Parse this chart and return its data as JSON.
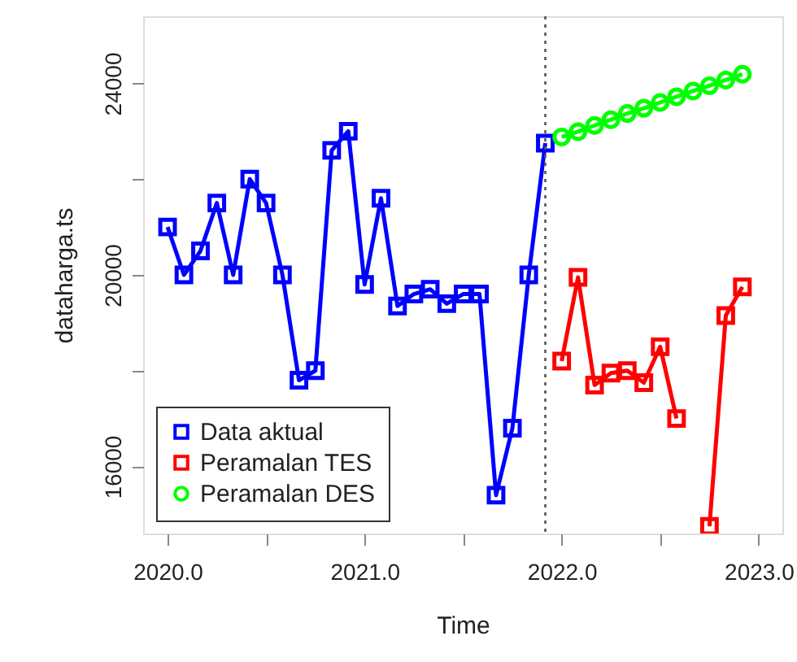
{
  "chart_data": {
    "type": "line",
    "xlabel": "Time",
    "ylabel": "dataharga.ts",
    "xlim": [
      2019.876,
      2023.12
    ],
    "ylim": [
      14600,
      25400
    ],
    "xticks": [
      {
        "value": 2020,
        "label": "2020.0"
      },
      {
        "value": 2020.5,
        "label": null
      },
      {
        "value": 2021,
        "label": "2021.0"
      },
      {
        "value": 2021.5,
        "label": null
      },
      {
        "value": 2022,
        "label": "2022.0"
      },
      {
        "value": 2022.5,
        "label": null
      },
      {
        "value": 2023,
        "label": "2023.0"
      }
    ],
    "yticks": [
      16000,
      {
        "value": 18000,
        "label": null
      },
      20000,
      {
        "value": 22000,
        "label": null
      },
      24000
    ],
    "grid": false,
    "legend": "bottom left",
    "ref_lines": [
      {
        "axis": "x",
        "value": 2021.917,
        "color": "#555555",
        "line_style": "dotted"
      }
    ],
    "series": [
      {
        "name": "Data aktual",
        "color": "#0000ff",
        "marker": "square",
        "x": [
          2020,
          2020.083,
          2020.167,
          2020.25,
          2020.333,
          2020.417,
          2020.5,
          2020.583,
          2020.667,
          2020.75,
          2020.833,
          2020.917,
          2021,
          2021.083,
          2021.167,
          2021.25,
          2021.333,
          2021.417,
          2021.5,
          2021.583,
          2021.667,
          2021.75,
          2021.833,
          2021.917
        ],
        "values": [
          21000,
          20000,
          20500,
          21500,
          20000,
          22000,
          21500,
          20000,
          17800,
          18000,
          22600,
          23000,
          19800,
          21600,
          19350,
          19600,
          19700,
          19400,
          19600,
          19600,
          15400,
          16800,
          20000,
          22750
        ]
      },
      {
        "name": "Peramalan TES",
        "color": "#ff0000",
        "marker": "square",
        "x": [
          2022,
          2022.083,
          2022.167,
          2022.25,
          2022.333,
          2022.417,
          2022.5,
          2022.583,
          2022.667,
          2022.75,
          2022.833,
          2022.917
        ],
        "values": [
          18200,
          19950,
          17700,
          17950,
          18000,
          17750,
          18500,
          17000,
          null,
          14750,
          19150,
          19750
        ]
      },
      {
        "name": "Peramalan DES",
        "color": "#00ff00",
        "marker": "circle",
        "x": [
          2022,
          2022.083,
          2022.167,
          2022.25,
          2022.333,
          2022.417,
          2022.5,
          2022.583,
          2022.667,
          2022.75,
          2022.833,
          2022.917
        ],
        "values": [
          22880,
          22990,
          23120,
          23240,
          23370,
          23480,
          23600,
          23720,
          23840,
          23950,
          24070,
          24190
        ]
      }
    ]
  }
}
